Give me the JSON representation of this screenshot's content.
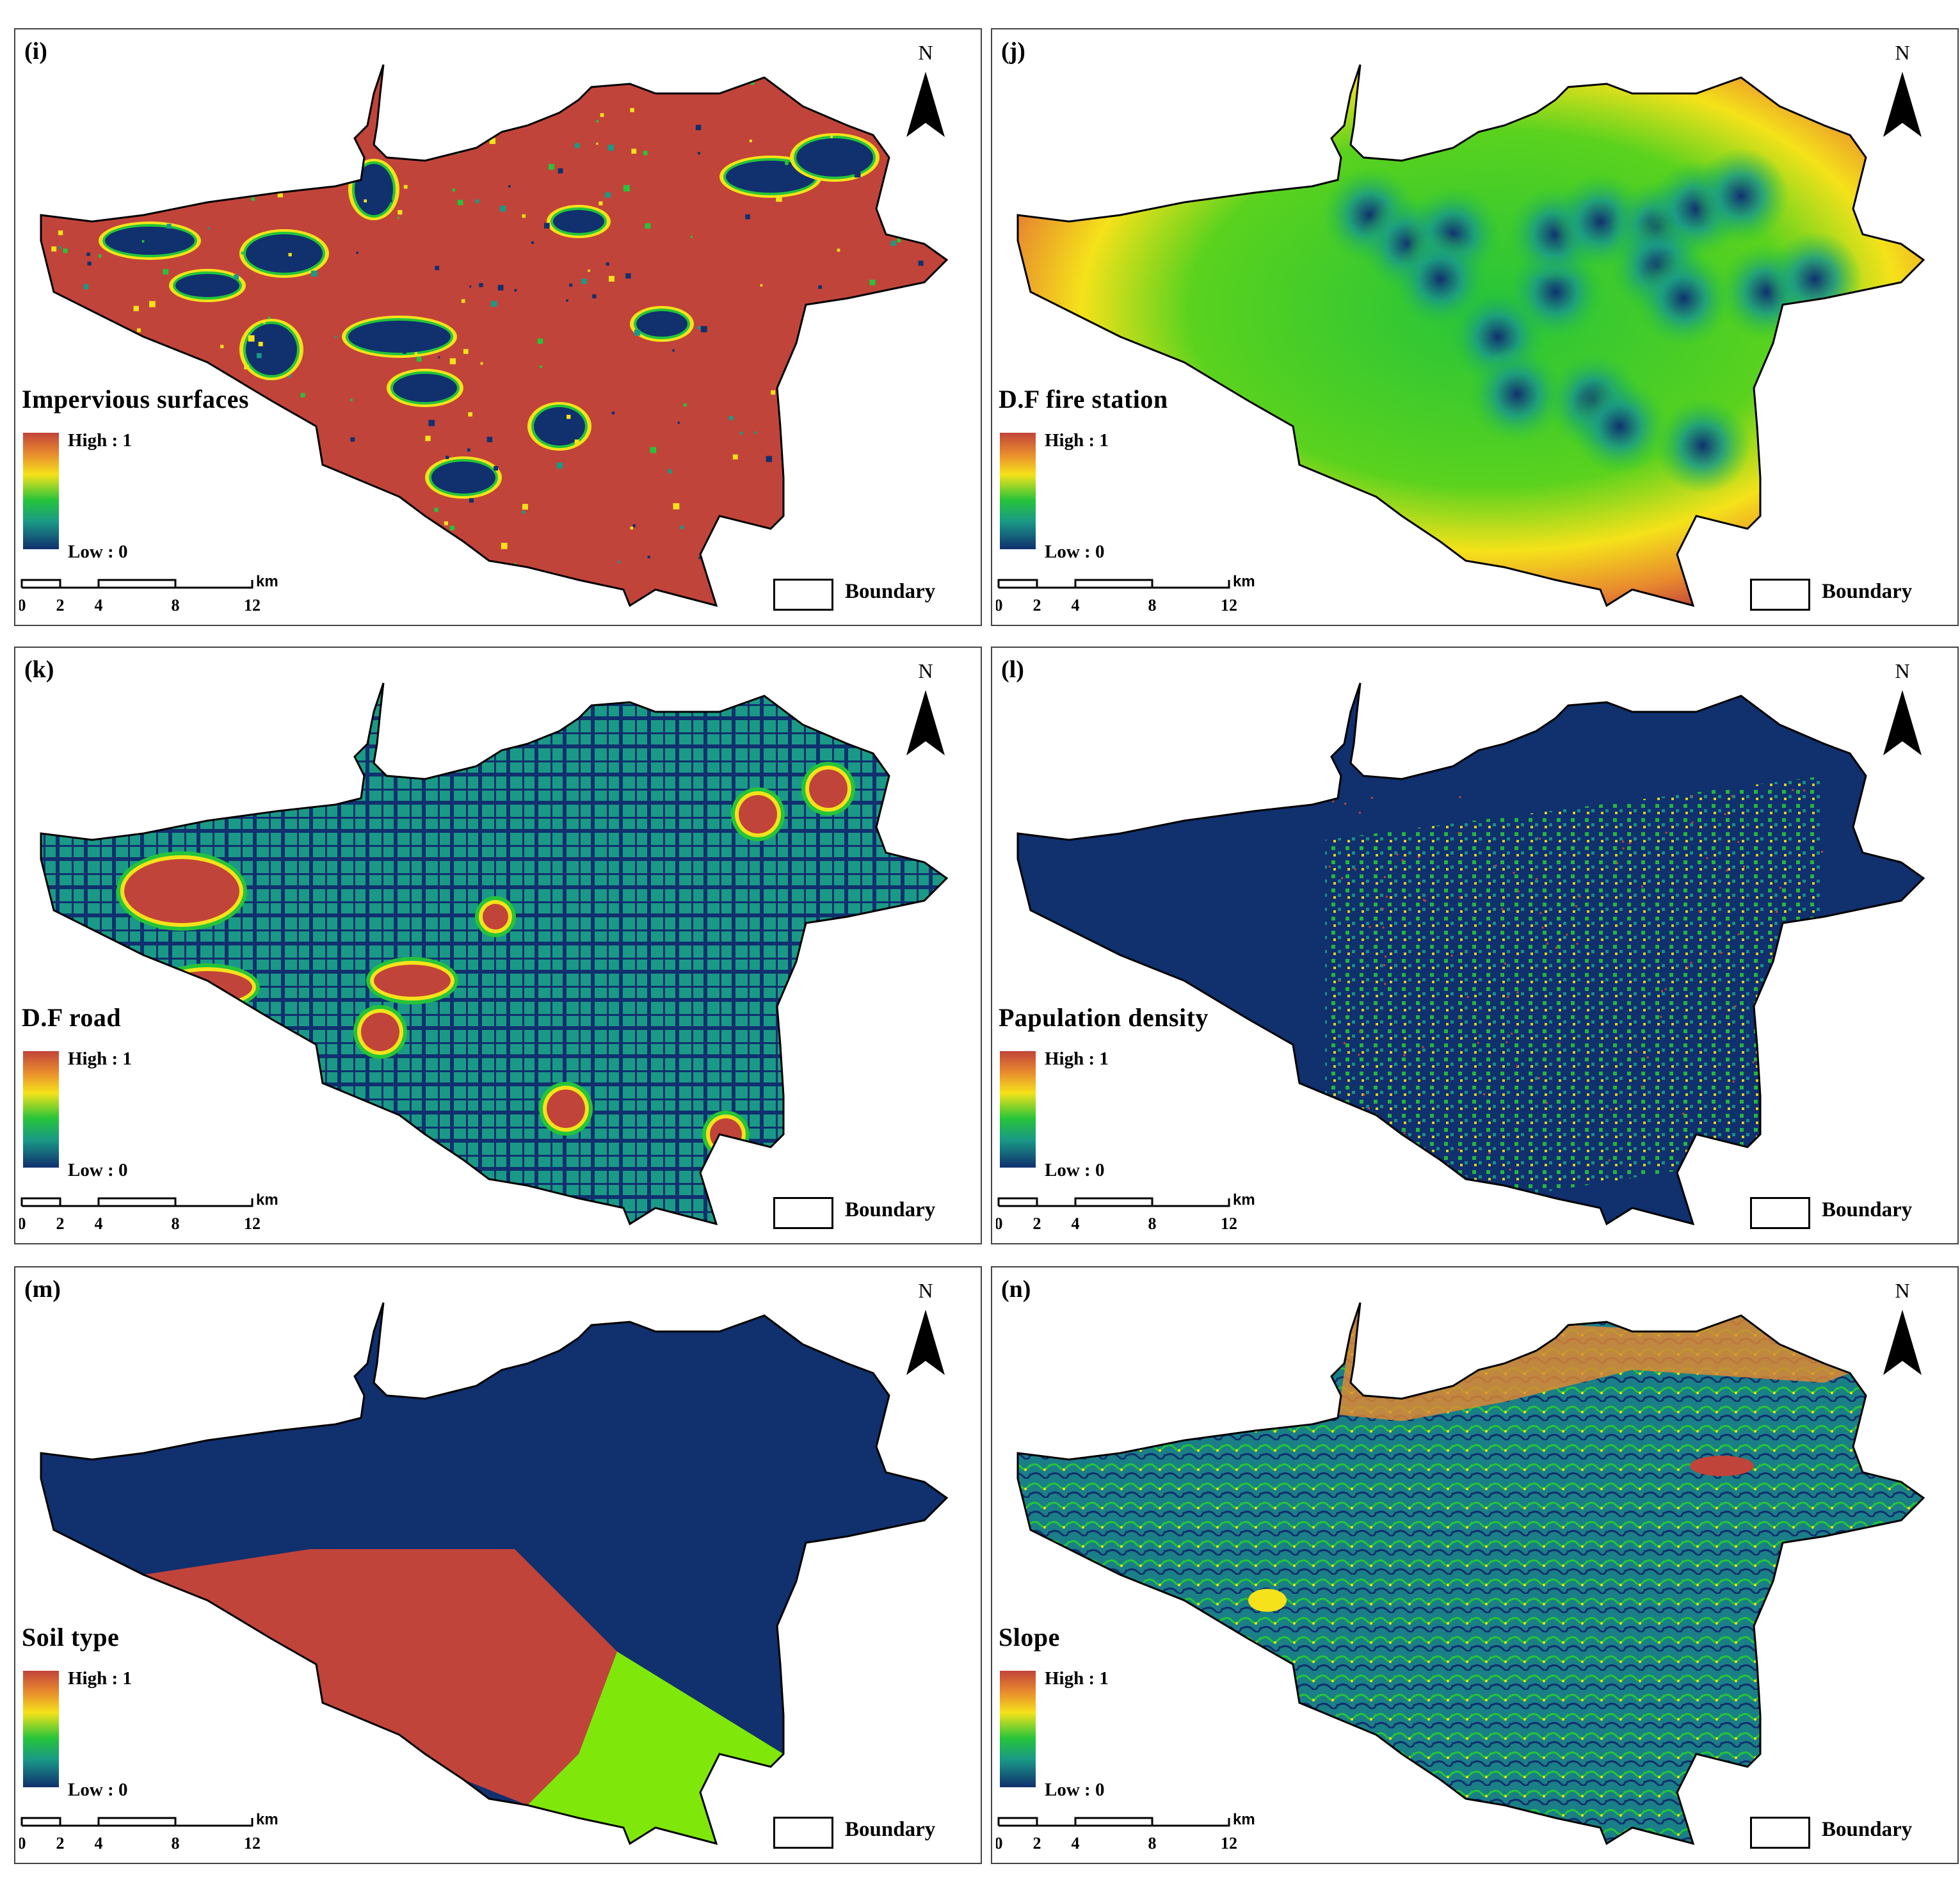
{
  "figure": {
    "legend_high": "High : 1",
    "legend_low": "Low : 0",
    "north_label": "N",
    "scale_ticks": [
      "0",
      "2",
      "4",
      "8",
      "12"
    ],
    "scale_unit": "km",
    "boundary_label": "Boundary"
  },
  "panels": [
    {
      "label": "(i)",
      "title": "Impervious surfaces",
      "style": "impervious"
    },
    {
      "label": "(j)",
      "title": "D.F fire station",
      "style": "fire"
    },
    {
      "label": "(k)",
      "title": "D.F road",
      "style": "road"
    },
    {
      "label": "(l)",
      "title": "Papulation density",
      "style": "population"
    },
    {
      "label": "(m)",
      "title": "Soil type",
      "style": "soil"
    },
    {
      "label": "(n)",
      "title": "Slope",
      "style": "slope"
    }
  ],
  "colors": {
    "high": "#c1443a",
    "orange": "#e88a2e",
    "yellow": "#f5e21a",
    "green": "#26c43a",
    "teal": "#1a9a86",
    "low": "#10306e",
    "soil_green": "#7fe80a"
  }
}
